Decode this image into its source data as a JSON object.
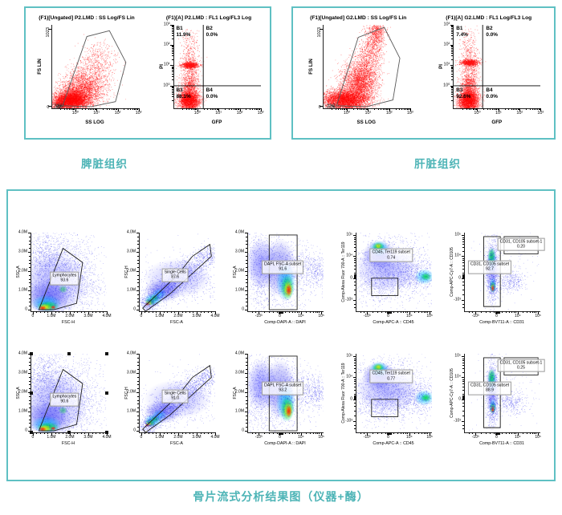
{
  "colors": {
    "panel_border": "#5fc0c3",
    "caption_text": "#4db4b6",
    "scatter_dots": "#ff0000",
    "density_palette": [
      "#2828ff",
      "#00beff",
      "#00dd33",
      "#ffee00",
      "#ff2200"
    ]
  },
  "axes": {
    "m_ticks": [
      "0",
      "1.0M",
      "2.0M",
      "3.0M",
      "4.0M"
    ],
    "log_ticks": [
      "10⁰",
      "10¹",
      "10²",
      "10³"
    ],
    "biexp_ticks": [
      "-10³",
      "0",
      "10⁴",
      "10⁵"
    ]
  },
  "chart_data": {
    "type": "scatter",
    "title": "Flow cytometry analysis figure",
    "top_panels": [
      {
        "caption": "脾脏组织",
        "scatter": {
          "title": "(F1)[Ungated] P2.LMD : SS Log/FS Lin",
          "xlabel": "SS LOG",
          "ylabel": "FS LIN",
          "ymax": "1023",
          "ymin": "0"
        },
        "quadrant": {
          "title": "(F1)[A] P2.LMD : FL1 Log/FL3 Log",
          "xlabel": "GFP",
          "ylabel": "PI",
          "quads": [
            {
              "name": "B1",
              "pct": "11.9%"
            },
            {
              "name": "B2",
              "pct": "0.0%"
            },
            {
              "name": "B3",
              "pct": "88.1%"
            },
            {
              "name": "B4",
              "pct": "0.0%"
            }
          ]
        }
      },
      {
        "caption": "肝脏组织",
        "scatter": {
          "title": "(F1)[Ungated] G2.LMD : SS Log/FS Lin",
          "xlabel": "SS LOG",
          "ylabel": "FS LIN",
          "ymax": "1023",
          "ymin": "0"
        },
        "quadrant": {
          "title": "(F1)[A] G2.LMD : FL1 Log/FL3 Log",
          "xlabel": "GFP",
          "ylabel": "PI",
          "quads": [
            {
              "name": "B1",
              "pct": "7.4%"
            },
            {
              "name": "B2",
              "pct": "0.0%"
            },
            {
              "name": "B3",
              "pct": "92.6%"
            },
            {
              "name": "B4",
              "pct": "0.0%"
            }
          ]
        }
      }
    ],
    "bottom_panel": {
      "caption": "骨片流式分析结果图（仪器+酶）",
      "plots": [
        {
          "xlabel": "FSC-H",
          "ylabel": "SSC-A",
          "xaxis": "m",
          "yaxis": "m",
          "gates": [
            {
              "label": "Lymphocytes",
              "value": "93.6"
            }
          ]
        },
        {
          "xlabel": "FSC-A",
          "ylabel": "FSC-H",
          "xaxis": "m",
          "yaxis": "m",
          "gates": [
            {
              "label": "Single Cells",
              "value": "87.6"
            }
          ]
        },
        {
          "xlabel": "Comp-DAPI-A :: DAPI",
          "ylabel": "FSC-A",
          "xaxis": "biexp",
          "yaxis": "m",
          "gates": [
            {
              "label": "DAPI, FSC-A subset",
              "value": "91.6"
            }
          ]
        },
        {
          "xlabel": "Comp-APC-A :: CD45",
          "ylabel": "Comp-Alexa Fluor 700-A :: Ter119",
          "xaxis": "biexp",
          "yaxis": "biexp",
          "gates": [
            {
              "label": "CD45, Ter119 subset",
              "value": "0.74"
            }
          ]
        },
        {
          "xlabel": "Comp-BV711-A :: CD31",
          "ylabel": "Comp-APC-Cy7-A :: CD105",
          "xaxis": "biexp",
          "yaxis": "biexp",
          "gates": [
            {
              "label": "CD31, CD105 subset",
              "value": "92.7"
            },
            {
              "label": "CD31, CD105 subset-1",
              "value": "0.20"
            }
          ]
        },
        {
          "xlabel": "FSC-H",
          "ylabel": "SSC-A",
          "xaxis": "m",
          "yaxis": "m",
          "selected": true,
          "gates": [
            {
              "label": "Lymphocytes",
              "value": "90.6"
            }
          ]
        },
        {
          "xlabel": "FSC-A",
          "ylabel": "FSC-H",
          "xaxis": "m",
          "yaxis": "m",
          "gates": [
            {
              "label": "Single Cells",
              "value": "91.0"
            }
          ]
        },
        {
          "xlabel": "Comp-DAPI-A :: DAPI",
          "ylabel": "FSC-A",
          "xaxis": "biexp",
          "yaxis": "m",
          "gates": [
            {
              "label": "DAPI, FSC-A subset",
              "value": "93.2"
            }
          ]
        },
        {
          "xlabel": "Comp-APC-A :: CD45",
          "ylabel": "Comp-Alexa Fluor 700-A :: Ter119",
          "xaxis": "biexp",
          "yaxis": "biexp",
          "gates": [
            {
              "label": "CD45, Ter119 subset",
              "value": "0.77"
            }
          ]
        },
        {
          "xlabel": "Comp-BV711-A :: CD31",
          "ylabel": "Comp-APC-Cy7-A :: CD105",
          "xaxis": "biexp",
          "yaxis": "biexp",
          "gates": [
            {
              "label": "CD31, CD105 subset",
              "value": "88.9"
            },
            {
              "label": "CD31, CD105 subset-1",
              "value": "0.25"
            }
          ]
        }
      ]
    }
  }
}
